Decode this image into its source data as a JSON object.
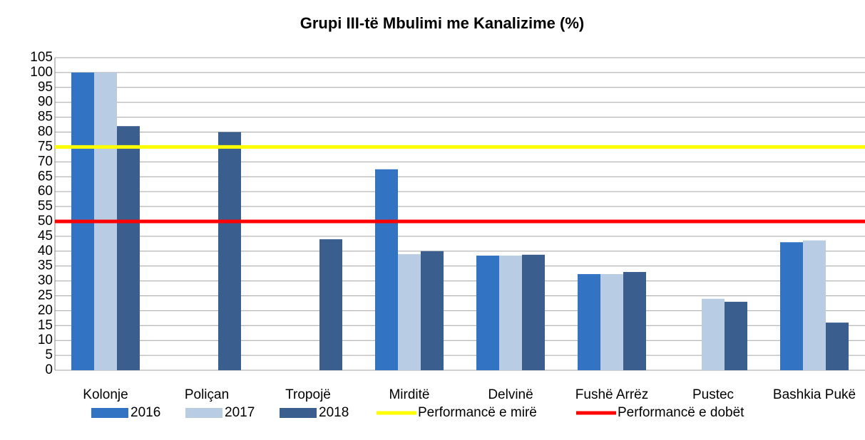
{
  "chart_data": {
    "type": "bar",
    "title": "Grupi III-të Mbulimi me Kanalizime (%)",
    "categories": [
      "Kolonje",
      "Poliçan",
      "Tropojë",
      "Mirditë",
      "Delvinë",
      "Fushë Arrëz",
      "Pustec",
      "Bashkia Pukë"
    ],
    "series": [
      {
        "name": "2016",
        "color": "#3273c3",
        "values": [
          100,
          null,
          null,
          67.5,
          38.5,
          32.3,
          null,
          43
        ]
      },
      {
        "name": "2017",
        "color": "#b8cce4",
        "values": [
          100,
          null,
          null,
          39,
          38.5,
          32.3,
          24,
          43.6
        ]
      },
      {
        "name": "2018",
        "color": "#3a5f8e",
        "values": [
          82,
          80,
          44,
          40,
          38.8,
          33,
          23,
          16
        ]
      }
    ],
    "lines": [
      {
        "name": "Performancë e mirë",
        "color": "#ffff00",
        "value": 75
      },
      {
        "name": "Performancë e dobët",
        "color": "#ff0000",
        "value": 50
      }
    ],
    "ylim": [
      0,
      105
    ],
    "yticks": [
      0,
      5,
      10,
      15,
      20,
      25,
      30,
      35,
      40,
      45,
      50,
      55,
      60,
      65,
      70,
      75,
      80,
      85,
      90,
      95,
      100,
      105
    ],
    "grid": true
  }
}
